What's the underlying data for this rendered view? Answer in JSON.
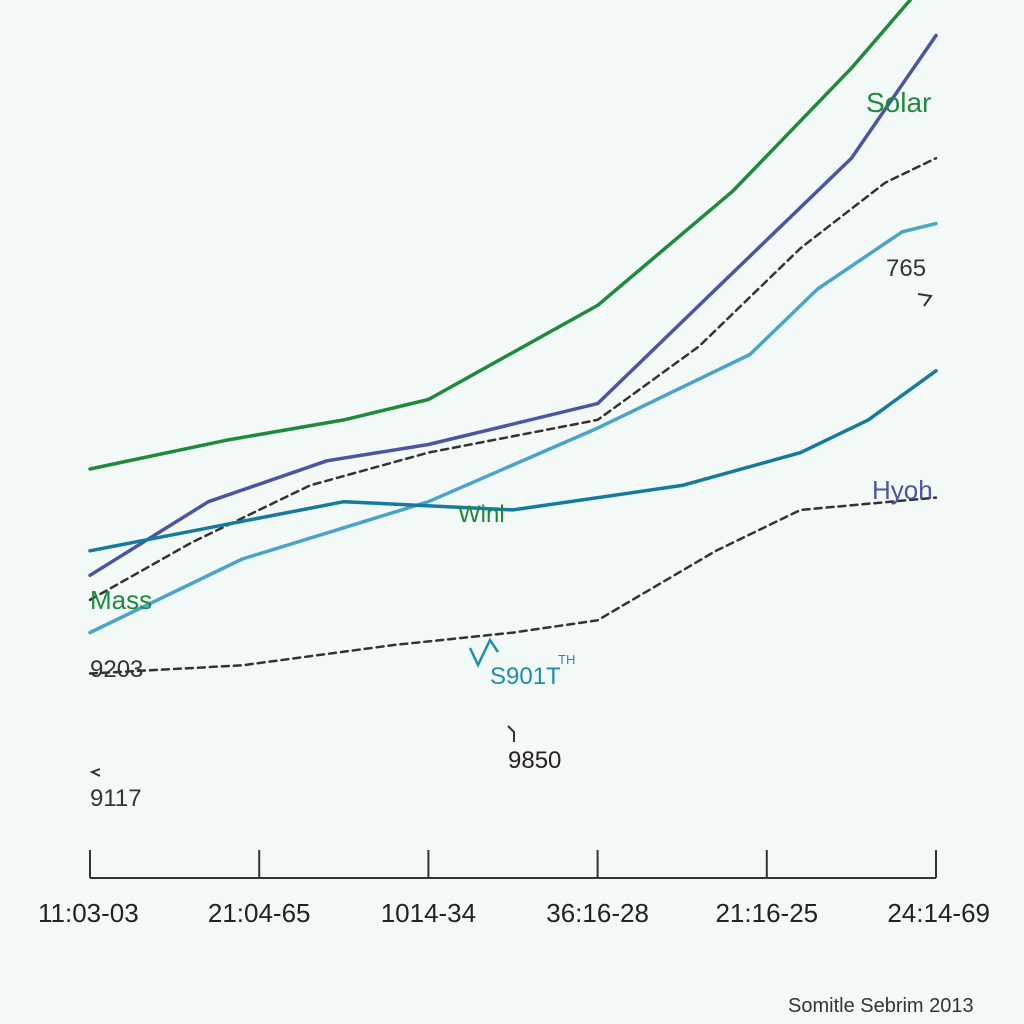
{
  "chart_data": {
    "type": "line",
    "categories": [
      "11:03-03",
      "21:04-65",
      "1014-34",
      "36:16-28",
      "21:16-25",
      "24:14-69"
    ],
    "xlabel": "",
    "ylabel": "",
    "ylim": [
      0,
      100
    ],
    "grid": false,
    "legend": "inline labels",
    "series": [
      {
        "name": "Solar",
        "color": "#1e8a3c",
        "style": "solid",
        "points": [
          [
            0,
            50
          ],
          [
            0.8,
            53.5
          ],
          [
            1.5,
            56
          ],
          [
            2,
            58.5
          ],
          [
            3,
            70
          ],
          [
            3.8,
            84
          ],
          [
            4.5,
            99
          ],
          [
            5,
            111
          ]
        ]
      },
      {
        "name": "",
        "color": "#4a56a0",
        "style": "solid",
        "points": [
          [
            0,
            37
          ],
          [
            0.7,
            46
          ],
          [
            1.4,
            51
          ],
          [
            2,
            53
          ],
          [
            3,
            58
          ],
          [
            3.7,
            72
          ],
          [
            4.5,
            88
          ],
          [
            5,
            103
          ]
        ]
      },
      {
        "name": "",
        "color": "#333333",
        "style": "dashed",
        "points": [
          [
            0,
            34
          ],
          [
            0.6,
            41
          ],
          [
            1.3,
            48
          ],
          [
            2,
            52
          ],
          [
            3,
            56
          ],
          [
            3.6,
            65
          ],
          [
            4.2,
            77
          ],
          [
            4.7,
            85
          ],
          [
            5,
            88
          ]
        ]
      },
      {
        "name": "",
        "color": "#4aa3c8",
        "style": "solid",
        "points": [
          [
            0,
            30
          ],
          [
            0.9,
            39
          ],
          [
            2,
            46
          ],
          [
            3,
            55
          ],
          [
            3.9,
            64
          ],
          [
            4.3,
            72
          ],
          [
            4.8,
            79
          ],
          [
            5,
            80
          ]
        ]
      },
      {
        "name": "Hyoh",
        "color": "#157a9c",
        "style": "solid",
        "points": [
          [
            0,
            40
          ],
          [
            1.5,
            46
          ],
          [
            2.5,
            45
          ],
          [
            3.5,
            48
          ],
          [
            4.2,
            52
          ],
          [
            4.6,
            56
          ],
          [
            5,
            62
          ]
        ]
      },
      {
        "name": "",
        "color": "#333333",
        "style": "dashed",
        "points": [
          [
            0,
            25
          ],
          [
            0.9,
            26
          ],
          [
            1.8,
            28.5
          ],
          [
            2.5,
            30
          ],
          [
            3,
            31.5
          ],
          [
            3.7,
            40
          ],
          [
            4.2,
            45
          ],
          [
            5,
            46.5
          ]
        ]
      }
    ],
    "annotations": [
      {
        "text": "Solar",
        "color": "#1e8a3c"
      },
      {
        "text": "765",
        "color": "#333333"
      },
      {
        "text": "Hyoh",
        "color": "#4a56a0"
      },
      {
        "text": "Winl",
        "color": "#1e8a3c"
      },
      {
        "text": "Mass",
        "color": "#1e8a3c"
      },
      {
        "text": "9203",
        "color": "#333333"
      },
      {
        "text": "9117",
        "color": "#333333"
      },
      {
        "text": "S901T",
        "color": "#1f8fa8"
      },
      {
        "text": "TH",
        "color": "#1f8fa8"
      },
      {
        "text": "9850",
        "color": "#222222"
      }
    ],
    "source": "Somitle Sebrim 2013"
  }
}
